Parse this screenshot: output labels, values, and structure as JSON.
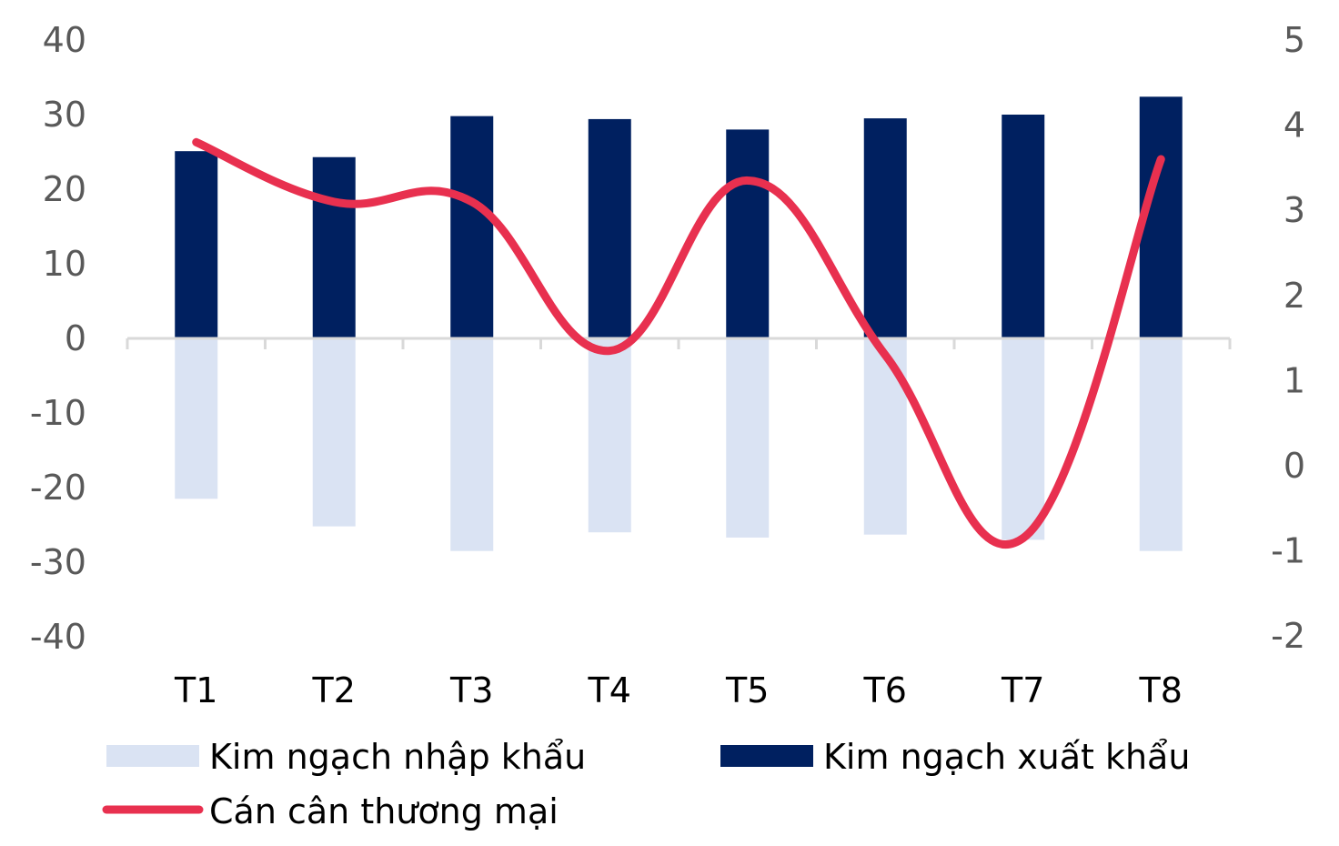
{
  "chart_data": {
    "type": "bar",
    "categories": [
      "T1",
      "T2",
      "T3",
      "T4",
      "T5",
      "T6",
      "T7",
      "T8"
    ],
    "series": [
      {
        "name": "Kim ngạch nhập khẩu",
        "type": "bar",
        "axis": "left",
        "color": "#dae3f3",
        "values": [
          -21.5,
          -25.2,
          -28.5,
          -26.0,
          -26.7,
          -26.3,
          -27.0,
          -28.5
        ]
      },
      {
        "name": "Kim ngạch xuất khẩu",
        "type": "bar",
        "axis": "left",
        "color": "#002060",
        "values": [
          25.1,
          24.3,
          29.8,
          29.4,
          28.0,
          29.5,
          30.0,
          32.4
        ]
      },
      {
        "name": "Cán cân thương mại",
        "type": "line",
        "axis": "right",
        "color": "#e8304f",
        "smooth": true,
        "values": [
          3.8,
          3.1,
          3.1,
          1.35,
          3.35,
          1.3,
          -0.85,
          3.6
        ]
      }
    ],
    "y_left": {
      "ylim": [
        -40,
        40
      ],
      "ticks": [
        "40",
        "30",
        "20",
        "10",
        "0",
        "-10",
        "-20",
        "-30",
        "-40"
      ]
    },
    "y_right": {
      "ylim": [
        -2,
        5
      ],
      "ticks": [
        "5",
        "4",
        "3",
        "2",
        "1",
        "0",
        "-1",
        "-2"
      ]
    },
    "grid": false,
    "legend": "bottom"
  }
}
